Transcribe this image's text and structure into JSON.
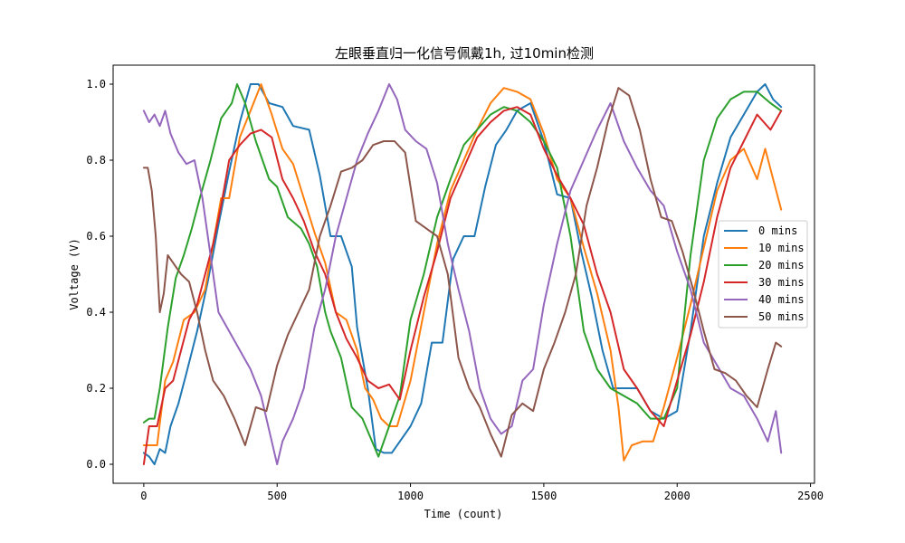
{
  "chart_data": {
    "type": "line",
    "title": "左眼垂直归一化信号佩戴1h, 过10min检测",
    "xlabel": "Time (count)",
    "ylabel": "Voltage (V)",
    "xlim": [
      -115,
      2515
    ],
    "ylim": [
      -0.05,
      1.05
    ],
    "xticks": [
      0,
      500,
      1000,
      1500,
      2000,
      2500
    ],
    "yticks": [
      0.0,
      0.2,
      0.4,
      0.6,
      0.8,
      1.0
    ],
    "xtick_labels": [
      "0",
      "500",
      "1000",
      "1500",
      "2000",
      "2500"
    ],
    "ytick_labels": [
      "0.0",
      "0.2",
      "0.4",
      "0.6",
      "0.8",
      "1.0"
    ],
    "legend_position": "center-right",
    "grid": false,
    "series": [
      {
        "name": "0 mins",
        "color": "#1f77b4",
        "x": [
          0,
          20,
          40,
          60,
          80,
          100,
          130,
          160,
          200,
          240,
          280,
          320,
          360,
          400,
          430,
          470,
          520,
          560,
          620,
          660,
          700,
          740,
          780,
          800,
          820,
          840,
          870,
          900,
          930,
          960,
          1000,
          1040,
          1080,
          1120,
          1160,
          1200,
          1240,
          1280,
          1320,
          1360,
          1400,
          1450,
          1500,
          1550,
          1600,
          1640,
          1680,
          1720,
          1760,
          1800,
          1850,
          1900,
          1950,
          2000,
          2050,
          2100,
          2150,
          2200,
          2250,
          2300,
          2330,
          2360,
          2390
        ],
        "y": [
          0.03,
          0.02,
          0.0,
          0.04,
          0.03,
          0.1,
          0.16,
          0.24,
          0.35,
          0.48,
          0.63,
          0.77,
          0.9,
          1.0,
          1.0,
          0.95,
          0.94,
          0.89,
          0.88,
          0.76,
          0.6,
          0.6,
          0.52,
          0.36,
          0.28,
          0.2,
          0.04,
          0.03,
          0.03,
          0.06,
          0.1,
          0.16,
          0.32,
          0.32,
          0.54,
          0.6,
          0.6,
          0.73,
          0.84,
          0.88,
          0.93,
          0.95,
          0.85,
          0.71,
          0.7,
          0.56,
          0.44,
          0.3,
          0.2,
          0.2,
          0.2,
          0.14,
          0.12,
          0.14,
          0.35,
          0.6,
          0.74,
          0.86,
          0.92,
          0.98,
          1.0,
          0.96,
          0.94
        ]
      },
      {
        "name": "10 mins",
        "color": "#ff7f0e",
        "x": [
          0,
          20,
          50,
          80,
          110,
          150,
          190,
          230,
          260,
          290,
          320,
          360,
          400,
          440,
          480,
          520,
          560,
          600,
          640,
          680,
          720,
          760,
          800,
          830,
          860,
          890,
          920,
          950,
          1000,
          1050,
          1100,
          1150,
          1200,
          1250,
          1300,
          1350,
          1400,
          1450,
          1500,
          1550,
          1600,
          1650,
          1700,
          1750,
          1780,
          1800,
          1830,
          1870,
          1910,
          1950,
          2000,
          2050,
          2100,
          2150,
          2200,
          2250,
          2300,
          2330,
          2360,
          2390
        ],
        "y": [
          0.05,
          0.05,
          0.05,
          0.22,
          0.27,
          0.38,
          0.4,
          0.46,
          0.58,
          0.7,
          0.7,
          0.86,
          0.93,
          1.0,
          0.92,
          0.83,
          0.79,
          0.7,
          0.61,
          0.53,
          0.4,
          0.38,
          0.3,
          0.2,
          0.17,
          0.12,
          0.1,
          0.1,
          0.22,
          0.4,
          0.58,
          0.72,
          0.8,
          0.88,
          0.95,
          0.99,
          0.98,
          0.96,
          0.87,
          0.75,
          0.7,
          0.57,
          0.45,
          0.3,
          0.15,
          0.01,
          0.05,
          0.06,
          0.06,
          0.15,
          0.28,
          0.42,
          0.57,
          0.72,
          0.8,
          0.83,
          0.75,
          0.83,
          0.75,
          0.67
        ]
      },
      {
        "name": "20 mins",
        "color": "#2ca02c",
        "x": [
          0,
          20,
          40,
          60,
          90,
          120,
          150,
          180,
          210,
          250,
          290,
          330,
          350,
          380,
          420,
          470,
          500,
          540,
          590,
          620,
          650,
          680,
          700,
          740,
          780,
          820,
          850,
          880,
          920,
          960,
          1000,
          1050,
          1100,
          1150,
          1200,
          1250,
          1300,
          1350,
          1400,
          1450,
          1500,
          1550,
          1600,
          1650,
          1700,
          1750,
          1800,
          1850,
          1900,
          1950,
          2000,
          2050,
          2100,
          2150,
          2200,
          2250,
          2300,
          2350,
          2390
        ],
        "y": [
          0.11,
          0.12,
          0.12,
          0.2,
          0.36,
          0.49,
          0.55,
          0.62,
          0.7,
          0.8,
          0.91,
          0.95,
          1.0,
          0.95,
          0.85,
          0.75,
          0.73,
          0.65,
          0.62,
          0.58,
          0.52,
          0.4,
          0.35,
          0.28,
          0.15,
          0.12,
          0.07,
          0.02,
          0.1,
          0.18,
          0.38,
          0.5,
          0.65,
          0.75,
          0.84,
          0.88,
          0.92,
          0.94,
          0.93,
          0.9,
          0.85,
          0.78,
          0.6,
          0.35,
          0.25,
          0.2,
          0.18,
          0.16,
          0.12,
          0.12,
          0.2,
          0.55,
          0.8,
          0.91,
          0.96,
          0.98,
          0.98,
          0.95,
          0.93
        ]
      },
      {
        "name": "30 mins",
        "color": "#d62728",
        "x": [
          0,
          20,
          50,
          80,
          110,
          140,
          170,
          200,
          230,
          260,
          290,
          320,
          360,
          400,
          440,
          480,
          520,
          560,
          600,
          640,
          680,
          720,
          760,
          800,
          840,
          880,
          920,
          960,
          1000,
          1050,
          1100,
          1150,
          1200,
          1250,
          1300,
          1350,
          1400,
          1450,
          1500,
          1550,
          1600,
          1650,
          1700,
          1750,
          1800,
          1850,
          1900,
          1950,
          2000,
          2050,
          2100,
          2150,
          2200,
          2250,
          2300,
          2350,
          2390
        ],
        "y": [
          0.0,
          0.1,
          0.1,
          0.2,
          0.22,
          0.3,
          0.38,
          0.42,
          0.5,
          0.58,
          0.68,
          0.8,
          0.84,
          0.87,
          0.88,
          0.86,
          0.75,
          0.7,
          0.64,
          0.56,
          0.5,
          0.4,
          0.33,
          0.28,
          0.22,
          0.2,
          0.21,
          0.17,
          0.3,
          0.44,
          0.56,
          0.7,
          0.78,
          0.86,
          0.9,
          0.93,
          0.94,
          0.92,
          0.83,
          0.76,
          0.7,
          0.63,
          0.5,
          0.4,
          0.25,
          0.2,
          0.14,
          0.1,
          0.22,
          0.34,
          0.48,
          0.65,
          0.78,
          0.85,
          0.92,
          0.88,
          0.93
        ]
      },
      {
        "name": "40 mins",
        "color": "#9467bd",
        "x": [
          0,
          20,
          40,
          60,
          80,
          100,
          130,
          160,
          190,
          220,
          250,
          280,
          320,
          360,
          400,
          440,
          480,
          500,
          520,
          560,
          600,
          640,
          680,
          720,
          760,
          800,
          840,
          880,
          920,
          950,
          980,
          1020,
          1060,
          1100,
          1140,
          1180,
          1220,
          1260,
          1300,
          1340,
          1380,
          1420,
          1460,
          1500,
          1550,
          1600,
          1650,
          1700,
          1750,
          1800,
          1850,
          1900,
          1950,
          2000,
          2050,
          2100,
          2150,
          2200,
          2250,
          2300,
          2340,
          2370,
          2390
        ],
        "y": [
          0.93,
          0.9,
          0.92,
          0.89,
          0.93,
          0.87,
          0.82,
          0.79,
          0.8,
          0.7,
          0.55,
          0.4,
          0.35,
          0.3,
          0.25,
          0.18,
          0.06,
          0.0,
          0.06,
          0.12,
          0.2,
          0.36,
          0.46,
          0.6,
          0.7,
          0.8,
          0.87,
          0.93,
          1.0,
          0.96,
          0.88,
          0.85,
          0.83,
          0.74,
          0.58,
          0.46,
          0.35,
          0.2,
          0.12,
          0.08,
          0.1,
          0.22,
          0.25,
          0.42,
          0.58,
          0.72,
          0.8,
          0.88,
          0.95,
          0.85,
          0.78,
          0.72,
          0.68,
          0.56,
          0.46,
          0.32,
          0.26,
          0.2,
          0.18,
          0.12,
          0.06,
          0.14,
          0.03
        ]
      },
      {
        "name": "50 mins",
        "color": "#8c564b",
        "x": [
          0,
          15,
          30,
          45,
          60,
          75,
          90,
          110,
          140,
          170,
          200,
          230,
          260,
          300,
          340,
          380,
          420,
          460,
          500,
          540,
          580,
          620,
          660,
          700,
          740,
          780,
          820,
          860,
          900,
          940,
          980,
          1020,
          1060,
          1100,
          1140,
          1180,
          1220,
          1260,
          1300,
          1340,
          1380,
          1420,
          1460,
          1500,
          1540,
          1580,
          1620,
          1660,
          1700,
          1740,
          1780,
          1820,
          1860,
          1900,
          1940,
          1980,
          2020,
          2060,
          2100,
          2140,
          2180,
          2220,
          2260,
          2300,
          2340,
          2370,
          2390
        ],
        "y": [
          0.78,
          0.78,
          0.72,
          0.6,
          0.4,
          0.45,
          0.55,
          0.53,
          0.5,
          0.48,
          0.4,
          0.3,
          0.22,
          0.18,
          0.12,
          0.05,
          0.15,
          0.14,
          0.26,
          0.34,
          0.4,
          0.46,
          0.6,
          0.68,
          0.77,
          0.78,
          0.8,
          0.84,
          0.85,
          0.85,
          0.82,
          0.64,
          0.62,
          0.6,
          0.5,
          0.28,
          0.2,
          0.15,
          0.08,
          0.02,
          0.13,
          0.16,
          0.14,
          0.25,
          0.32,
          0.4,
          0.5,
          0.68,
          0.78,
          0.9,
          0.99,
          0.97,
          0.88,
          0.75,
          0.65,
          0.64,
          0.56,
          0.46,
          0.35,
          0.25,
          0.24,
          0.22,
          0.18,
          0.15,
          0.25,
          0.32,
          0.31
        ]
      }
    ]
  }
}
